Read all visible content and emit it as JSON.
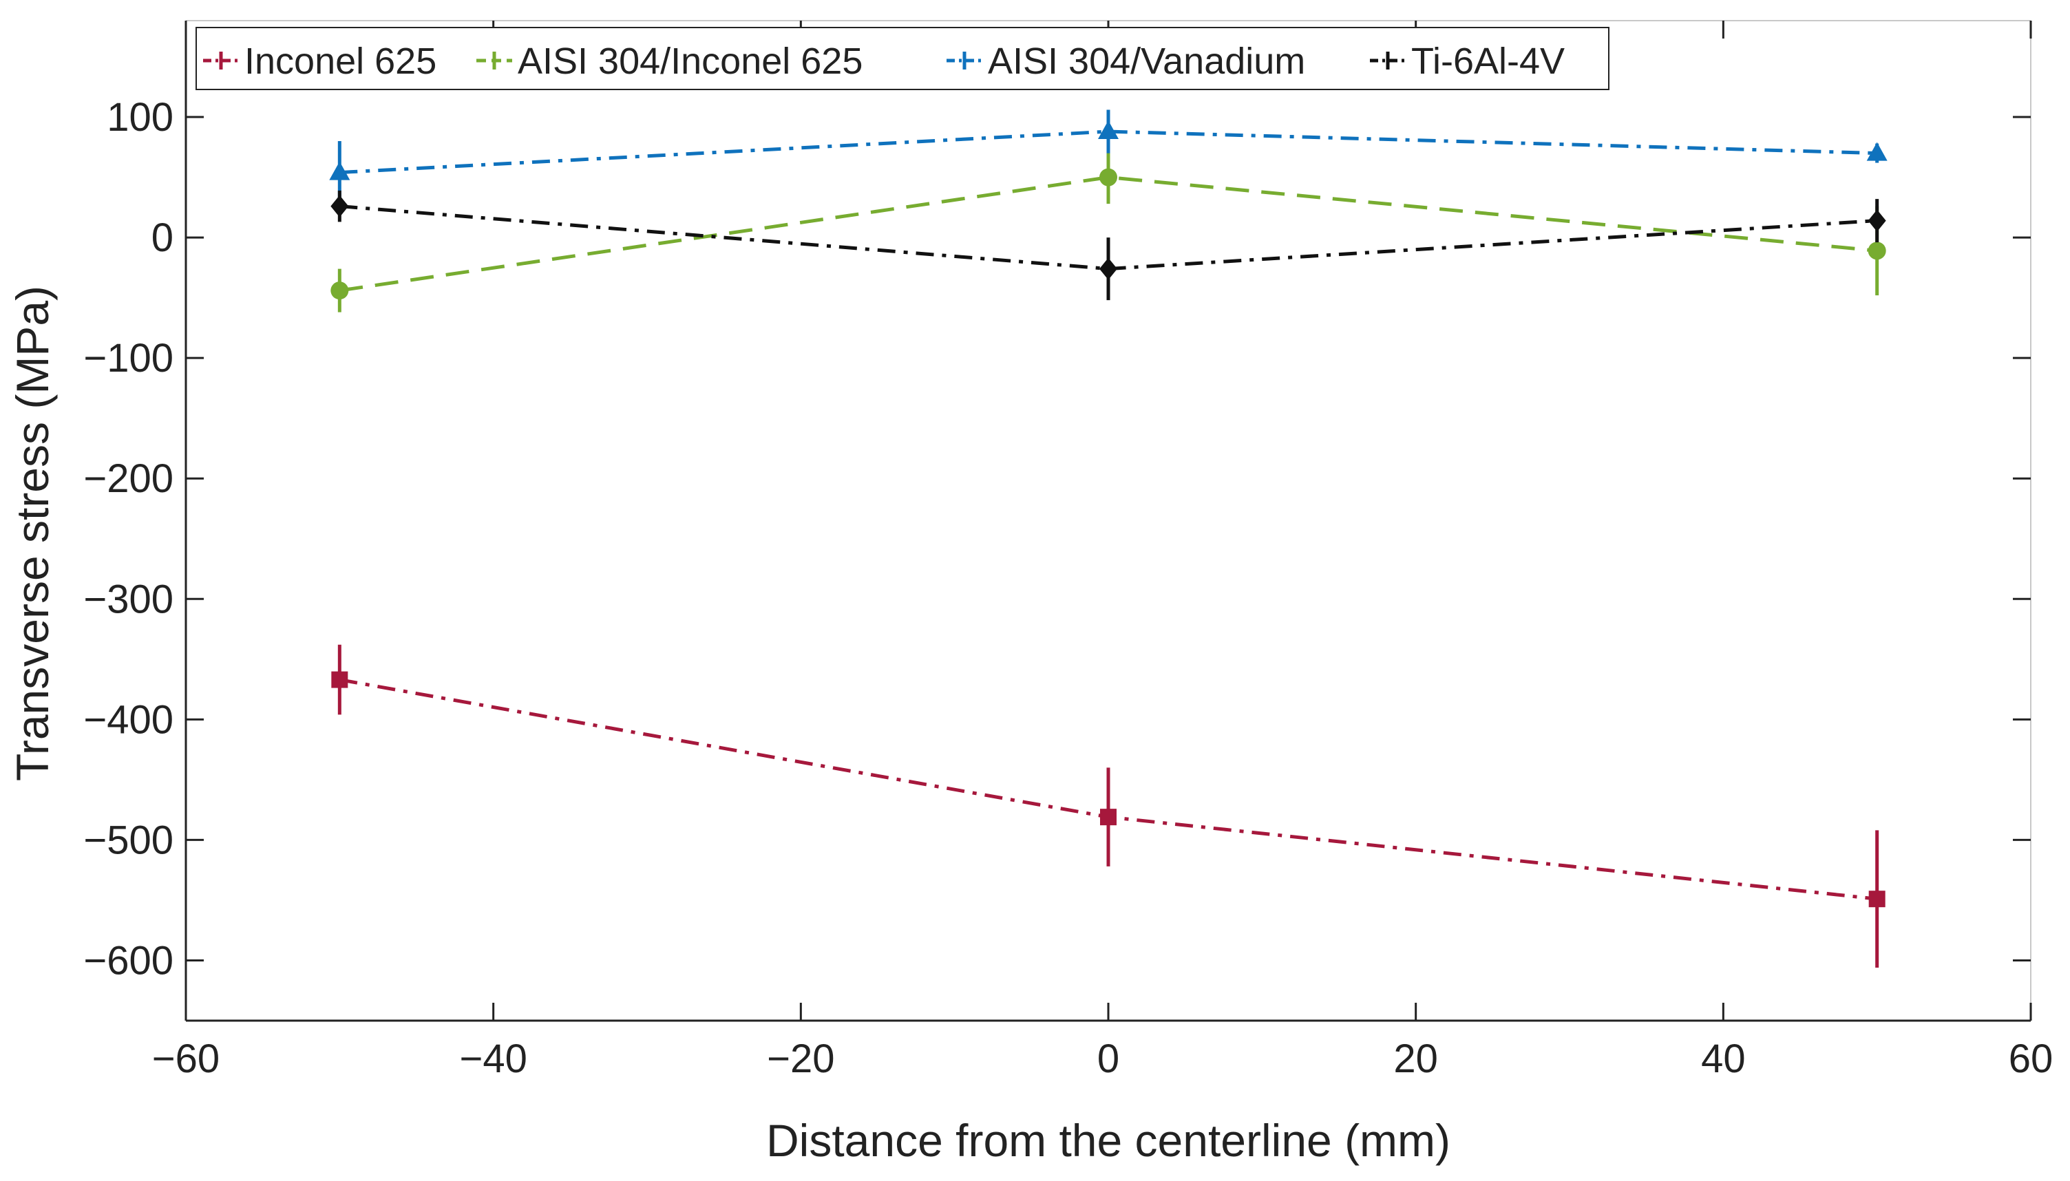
{
  "chart_data": {
    "type": "line",
    "title": "",
    "xlabel": "Distance from the centerline (mm)",
    "ylabel": "Transverse stress (MPa)",
    "xlim": [
      -60,
      60
    ],
    "ylim": [
      -650,
      180
    ],
    "xticks": [
      -60,
      -40,
      -20,
      0,
      20,
      40,
      60
    ],
    "xtick_labels": [
      "−60",
      "−40",
      "−20",
      "0",
      "20",
      "40",
      "60"
    ],
    "yticks": [
      100,
      0,
      -100,
      -200,
      -300,
      -400,
      -500,
      -600
    ],
    "ytick_labels": [
      "100",
      "0",
      "−100",
      "−200",
      "−300",
      "−400",
      "−500",
      "−600"
    ],
    "grid": false,
    "legend_position": "top-left",
    "series": [
      {
        "name": "Inconel 625",
        "color": "#a6183c",
        "marker": "square",
        "line_style": "dash-dot",
        "x": [
          -50,
          0,
          50
        ],
        "y": [
          -367,
          -481,
          -549
        ],
        "err": [
          29,
          41,
          57
        ]
      },
      {
        "name": "AISI 304/Inconel 625",
        "color": "#77ac30",
        "marker": "circle",
        "line_style": "dashed",
        "x": [
          -50,
          0,
          50
        ],
        "y": [
          -44,
          50,
          -11
        ],
        "err": [
          18,
          22,
          37
        ]
      },
      {
        "name": "AISI 304/Vanadium",
        "color": "#0f72bd",
        "marker": "triangle",
        "line_style": "dash-dot",
        "x": [
          -50,
          0,
          50
        ],
        "y": [
          54,
          88,
          70
        ],
        "err": [
          26,
          18,
          8
        ]
      },
      {
        "name": "Ti-6Al-4V",
        "color": "#111111",
        "marker": "diamond",
        "line_style": "dash-dot",
        "x": [
          -50,
          0,
          50
        ],
        "y": [
          26,
          -26,
          14
        ],
        "err": [
          13,
          26,
          18
        ]
      }
    ]
  }
}
